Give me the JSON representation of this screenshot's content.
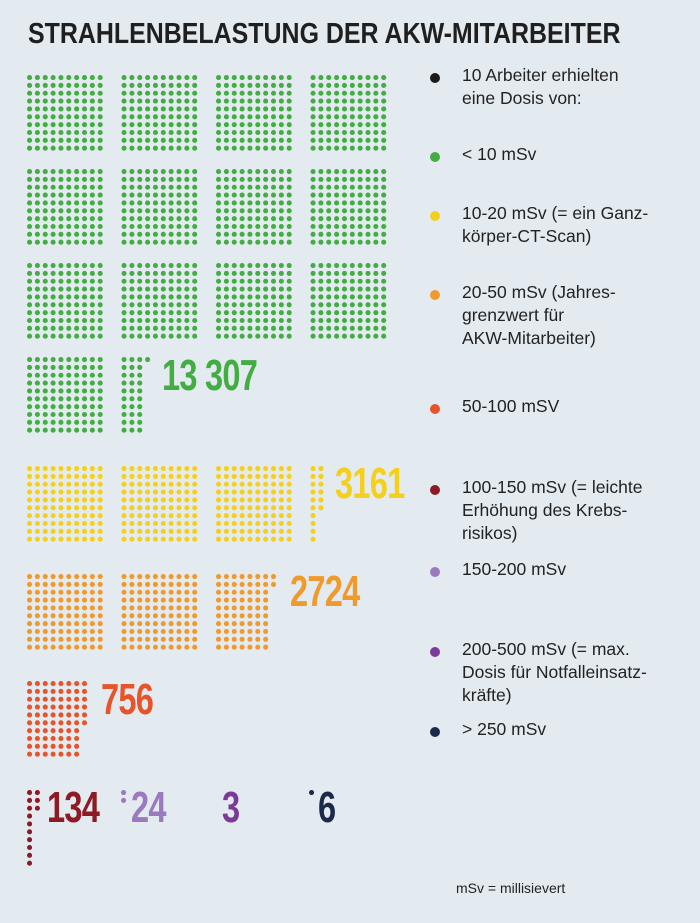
{
  "title": "STRAHLENBELASTUNG DER AKW-MITARBEITER",
  "chart_data": {
    "type": "pictogram",
    "unit_note": "10 Arbeiter erhielten\neine Dosis von:",
    "unit_color": "#1a1a1a",
    "categories": [
      {
        "label": "< 10 mSv",
        "count": "13 307",
        "value": 13307,
        "color": "#43ad44"
      },
      {
        "label": "10-20 mSv (= ein Ganz-\nkörper-CT-Scan)",
        "count": "3161",
        "value": 3161,
        "color": "#f4cf1c"
      },
      {
        "label": "20-50 mSv (Jahres-\ngrenzwert für\nAKW-Mitarbeiter)",
        "count": "2724",
        "value": 2724,
        "color": "#f0992d"
      },
      {
        "label": "50-100 mSV",
        "count": "756",
        "value": 756,
        "color": "#e5542a"
      },
      {
        "label": "100-150 mSv (= leichte\nErhöhung des Krebs-\nrisikos)",
        "count": "134",
        "value": 134,
        "color": "#8d1a24"
      },
      {
        "label": "150-200 mSv",
        "count": "24",
        "value": 24,
        "color": "#9b79bf"
      },
      {
        "label": "200-500 mSv (= max.\nDosis für Notfalleinsatz-\nkräfte)",
        "count": "3",
        "value": 3,
        "color": "#7b3a98"
      },
      {
        "label": "> 250 mSv",
        "count": "6",
        "value": 6,
        "color": "#1c2a4a"
      }
    ]
  },
  "footnote": "mSv = millisievert"
}
